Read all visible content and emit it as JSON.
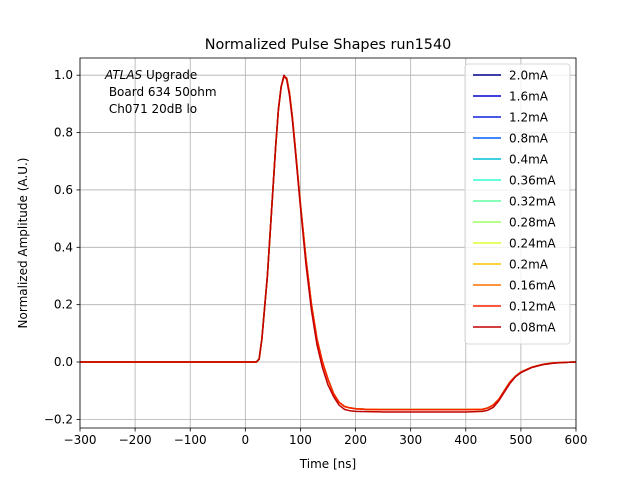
{
  "chart_data": {
    "type": "line",
    "title": "Normalized Pulse Shapes run1540",
    "xlabel": "Time [ns]",
    "ylabel": "Normalized Amplitude (A.U.)",
    "xlim": [
      -300,
      600
    ],
    "ylim": [
      -0.23,
      1.06
    ],
    "xticks": [
      -300,
      -200,
      -100,
      0,
      100,
      200,
      300,
      400,
      500,
      600
    ],
    "xtick_labels": [
      "−300",
      "−200",
      "−100",
      "0",
      "100",
      "200",
      "300",
      "400",
      "500",
      "600"
    ],
    "yticks": [
      -0.2,
      0.0,
      0.2,
      0.4,
      0.6,
      0.8,
      1.0
    ],
    "ytick_labels": [
      "−0.2",
      "0.0",
      "0.2",
      "0.4",
      "0.6",
      "0.8",
      "1.0"
    ],
    "grid": true,
    "legend_position": "upper right",
    "annotation": {
      "atlas": "ATLAS",
      "line1_rest": " Upgrade",
      "line2": " Board 634 50ohm",
      "line3": " Ch071 20dB lo"
    },
    "x": [
      -300,
      -100,
      0,
      20,
      25,
      30,
      40,
      50,
      55,
      60,
      65,
      70,
      75,
      80,
      85,
      90,
      100,
      110,
      120,
      130,
      140,
      150,
      160,
      170,
      180,
      190,
      200,
      220,
      250,
      300,
      400,
      430,
      440,
      450,
      460,
      470,
      480,
      490,
      500,
      520,
      540,
      560,
      580,
      600
    ],
    "series": [
      {
        "name": "2.0mA",
        "color": "#00008f",
        "values": [
          0,
          0,
          0,
          0,
          0.01,
          0.08,
          0.3,
          0.6,
          0.75,
          0.88,
          0.96,
          0.995,
          0.99,
          0.94,
          0.86,
          0.76,
          0.55,
          0.36,
          0.2,
          0.08,
          0.0,
          -0.06,
          -0.11,
          -0.14,
          -0.155,
          -0.16,
          -0.163,
          -0.165,
          -0.166,
          -0.166,
          -0.166,
          -0.165,
          -0.16,
          -0.15,
          -0.13,
          -0.1,
          -0.07,
          -0.05,
          -0.035,
          -0.018,
          -0.008,
          -0.003,
          -0.001,
          0
        ]
      },
      {
        "name": "1.6mA",
        "color": "#0000d0",
        "values": [
          0,
          0,
          0,
          0,
          0.01,
          0.08,
          0.3,
          0.6,
          0.75,
          0.88,
          0.96,
          0.995,
          0.99,
          0.94,
          0.86,
          0.76,
          0.55,
          0.36,
          0.2,
          0.08,
          0.0,
          -0.06,
          -0.11,
          -0.14,
          -0.155,
          -0.16,
          -0.163,
          -0.165,
          -0.166,
          -0.166,
          -0.166,
          -0.165,
          -0.16,
          -0.15,
          -0.13,
          -0.1,
          -0.07,
          -0.05,
          -0.035,
          -0.018,
          -0.008,
          -0.003,
          -0.001,
          0
        ]
      },
      {
        "name": "1.2mA",
        "color": "#1020e0",
        "values": [
          0,
          0,
          0,
          0,
          0.01,
          0.08,
          0.3,
          0.6,
          0.75,
          0.88,
          0.96,
          0.995,
          0.99,
          0.94,
          0.86,
          0.76,
          0.55,
          0.36,
          0.2,
          0.08,
          0.0,
          -0.06,
          -0.11,
          -0.14,
          -0.155,
          -0.16,
          -0.163,
          -0.165,
          -0.166,
          -0.166,
          -0.166,
          -0.165,
          -0.16,
          -0.15,
          -0.13,
          -0.1,
          -0.07,
          -0.05,
          -0.035,
          -0.018,
          -0.008,
          -0.003,
          -0.001,
          0
        ]
      },
      {
        "name": "0.8mA",
        "color": "#0060ff",
        "values": [
          0,
          0,
          0,
          0,
          0.01,
          0.08,
          0.3,
          0.6,
          0.75,
          0.88,
          0.96,
          0.995,
          0.99,
          0.94,
          0.86,
          0.76,
          0.55,
          0.36,
          0.2,
          0.08,
          0.0,
          -0.06,
          -0.11,
          -0.14,
          -0.155,
          -0.16,
          -0.163,
          -0.165,
          -0.166,
          -0.166,
          -0.166,
          -0.165,
          -0.16,
          -0.15,
          -0.13,
          -0.1,
          -0.07,
          -0.05,
          -0.035,
          -0.018,
          -0.008,
          -0.003,
          -0.001,
          0
        ]
      },
      {
        "name": "0.4mA",
        "color": "#00c0d8",
        "values": [
          0,
          0,
          0,
          0,
          0.01,
          0.08,
          0.3,
          0.6,
          0.75,
          0.88,
          0.96,
          0.995,
          0.99,
          0.94,
          0.86,
          0.76,
          0.55,
          0.36,
          0.2,
          0.08,
          0.0,
          -0.06,
          -0.11,
          -0.14,
          -0.155,
          -0.16,
          -0.163,
          -0.165,
          -0.166,
          -0.166,
          -0.166,
          -0.165,
          -0.16,
          -0.15,
          -0.13,
          -0.1,
          -0.07,
          -0.05,
          -0.035,
          -0.018,
          -0.008,
          -0.003,
          -0.001,
          0
        ]
      },
      {
        "name": "0.36mA",
        "color": "#30ffd0",
        "values": [
          0,
          0,
          0,
          0,
          0.01,
          0.08,
          0.3,
          0.6,
          0.75,
          0.88,
          0.96,
          0.995,
          0.99,
          0.94,
          0.86,
          0.76,
          0.55,
          0.36,
          0.2,
          0.08,
          0.0,
          -0.06,
          -0.11,
          -0.14,
          -0.155,
          -0.16,
          -0.163,
          -0.165,
          -0.166,
          -0.166,
          -0.166,
          -0.165,
          -0.16,
          -0.15,
          -0.13,
          -0.1,
          -0.07,
          -0.05,
          -0.035,
          -0.018,
          -0.008,
          -0.003,
          -0.001,
          0
        ]
      },
      {
        "name": "0.32mA",
        "color": "#60ffa0",
        "values": [
          0,
          0,
          0,
          0,
          0.01,
          0.08,
          0.3,
          0.6,
          0.75,
          0.88,
          0.96,
          0.995,
          0.99,
          0.94,
          0.86,
          0.76,
          0.55,
          0.36,
          0.2,
          0.08,
          0.0,
          -0.06,
          -0.11,
          -0.14,
          -0.155,
          -0.16,
          -0.163,
          -0.165,
          -0.166,
          -0.166,
          -0.166,
          -0.165,
          -0.16,
          -0.15,
          -0.13,
          -0.1,
          -0.07,
          -0.05,
          -0.035,
          -0.018,
          -0.008,
          -0.003,
          -0.001,
          0
        ]
      },
      {
        "name": "0.28mA",
        "color": "#a0ff60",
        "values": [
          0,
          0,
          0,
          0,
          0.01,
          0.08,
          0.3,
          0.6,
          0.75,
          0.88,
          0.96,
          0.995,
          0.99,
          0.94,
          0.86,
          0.76,
          0.55,
          0.36,
          0.2,
          0.08,
          0.0,
          -0.06,
          -0.11,
          -0.14,
          -0.155,
          -0.16,
          -0.163,
          -0.165,
          -0.166,
          -0.166,
          -0.166,
          -0.165,
          -0.16,
          -0.15,
          -0.13,
          -0.1,
          -0.07,
          -0.05,
          -0.035,
          -0.018,
          -0.008,
          -0.003,
          -0.001,
          0
        ]
      },
      {
        "name": "0.24mA",
        "color": "#e0ff30",
        "values": [
          0,
          0,
          0,
          0,
          0.01,
          0.08,
          0.3,
          0.6,
          0.75,
          0.88,
          0.96,
          0.995,
          0.99,
          0.94,
          0.86,
          0.76,
          0.55,
          0.36,
          0.2,
          0.08,
          0.0,
          -0.06,
          -0.11,
          -0.14,
          -0.155,
          -0.16,
          -0.163,
          -0.165,
          -0.166,
          -0.166,
          -0.166,
          -0.165,
          -0.16,
          -0.15,
          -0.13,
          -0.1,
          -0.07,
          -0.05,
          -0.035,
          -0.018,
          -0.008,
          -0.003,
          -0.001,
          0
        ]
      },
      {
        "name": "0.2mA",
        "color": "#ffc000",
        "values": [
          0,
          0,
          0,
          0,
          0.01,
          0.08,
          0.3,
          0.6,
          0.75,
          0.88,
          0.96,
          0.995,
          0.99,
          0.94,
          0.86,
          0.76,
          0.55,
          0.36,
          0.2,
          0.08,
          0.0,
          -0.06,
          -0.11,
          -0.14,
          -0.155,
          -0.16,
          -0.163,
          -0.165,
          -0.166,
          -0.166,
          -0.166,
          -0.165,
          -0.16,
          -0.15,
          -0.13,
          -0.1,
          -0.07,
          -0.05,
          -0.035,
          -0.018,
          -0.008,
          -0.003,
          -0.001,
          0
        ]
      },
      {
        "name": "0.16mA",
        "color": "#ff7000",
        "values": [
          0,
          0,
          0,
          0,
          0.01,
          0.08,
          0.3,
          0.6,
          0.75,
          0.88,
          0.96,
          0.995,
          0.99,
          0.94,
          0.86,
          0.76,
          0.55,
          0.36,
          0.2,
          0.08,
          0.0,
          -0.06,
          -0.11,
          -0.14,
          -0.155,
          -0.16,
          -0.163,
          -0.165,
          -0.166,
          -0.166,
          -0.166,
          -0.165,
          -0.16,
          -0.15,
          -0.13,
          -0.1,
          -0.07,
          -0.05,
          -0.035,
          -0.018,
          -0.008,
          -0.003,
          -0.001,
          0
        ]
      },
      {
        "name": "0.12mA",
        "color": "#ff2000",
        "values": [
          0,
          0,
          0,
          0,
          0.01,
          0.08,
          0.3,
          0.6,
          0.75,
          0.88,
          0.96,
          0.995,
          0.99,
          0.94,
          0.86,
          0.76,
          0.55,
          0.36,
          0.2,
          0.08,
          0.0,
          -0.06,
          -0.11,
          -0.14,
          -0.155,
          -0.16,
          -0.163,
          -0.165,
          -0.166,
          -0.166,
          -0.166,
          -0.165,
          -0.16,
          -0.15,
          -0.13,
          -0.1,
          -0.07,
          -0.05,
          -0.035,
          -0.018,
          -0.008,
          -0.003,
          -0.001,
          0
        ]
      },
      {
        "name": "0.08mA",
        "color": "#c00000",
        "values": [
          0,
          0,
          0,
          0,
          0.01,
          0.08,
          0.3,
          0.6,
          0.75,
          0.88,
          0.96,
          1.0,
          0.985,
          0.93,
          0.85,
          0.75,
          0.54,
          0.34,
          0.18,
          0.06,
          -0.02,
          -0.08,
          -0.12,
          -0.15,
          -0.165,
          -0.17,
          -0.172,
          -0.173,
          -0.174,
          -0.174,
          -0.174,
          -0.172,
          -0.168,
          -0.158,
          -0.135,
          -0.105,
          -0.075,
          -0.052,
          -0.037,
          -0.019,
          -0.009,
          -0.004,
          -0.001,
          0
        ]
      }
    ]
  }
}
